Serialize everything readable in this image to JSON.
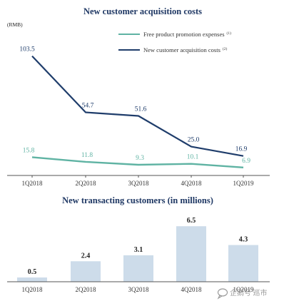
{
  "chart_data": [
    {
      "type": "line",
      "title": "New customer acquisition costs",
      "unit_label": "(RMB)",
      "categories": [
        "1Q2018",
        "2Q2018",
        "3Q2018",
        "4Q2018",
        "1Q2019"
      ],
      "ylim": [
        0,
        115
      ],
      "grid": false,
      "legend_position": "top-right",
      "series": [
        {
          "name": "Free product promotion expenses",
          "footnote": "(1)",
          "color": "#5fb3a3",
          "values": [
            15.8,
            11.8,
            9.3,
            10.1,
            6.9
          ],
          "labels": [
            "15.8",
            "11.8",
            "9.3",
            "10.1",
            "6.9"
          ]
        },
        {
          "name": "New customer acquisition costs",
          "footnote": "(2)",
          "color": "#1f3d6b",
          "values": [
            103.5,
            54.7,
            51.6,
            25.0,
            16.9
          ],
          "labels": [
            "103.5",
            "54.7",
            "51.6",
            "25.0",
            "16.9"
          ]
        }
      ]
    },
    {
      "type": "bar",
      "title": "New transacting customers (in millions)",
      "categories": [
        "1Q2018",
        "2Q2018",
        "3Q2018",
        "4Q2018",
        "1Q2019"
      ],
      "values": [
        0.5,
        2.4,
        3.1,
        6.5,
        4.3
      ],
      "labels": [
        "0.5",
        "2.4",
        "3.1",
        "6.5",
        "4.3"
      ],
      "ylim": [
        0,
        7.1
      ],
      "grid": false,
      "bar_color": "#cddcea"
    }
  ],
  "watermark": {
    "icon": "chat-bubble-icon",
    "text": "企鹅号 巡市"
  }
}
